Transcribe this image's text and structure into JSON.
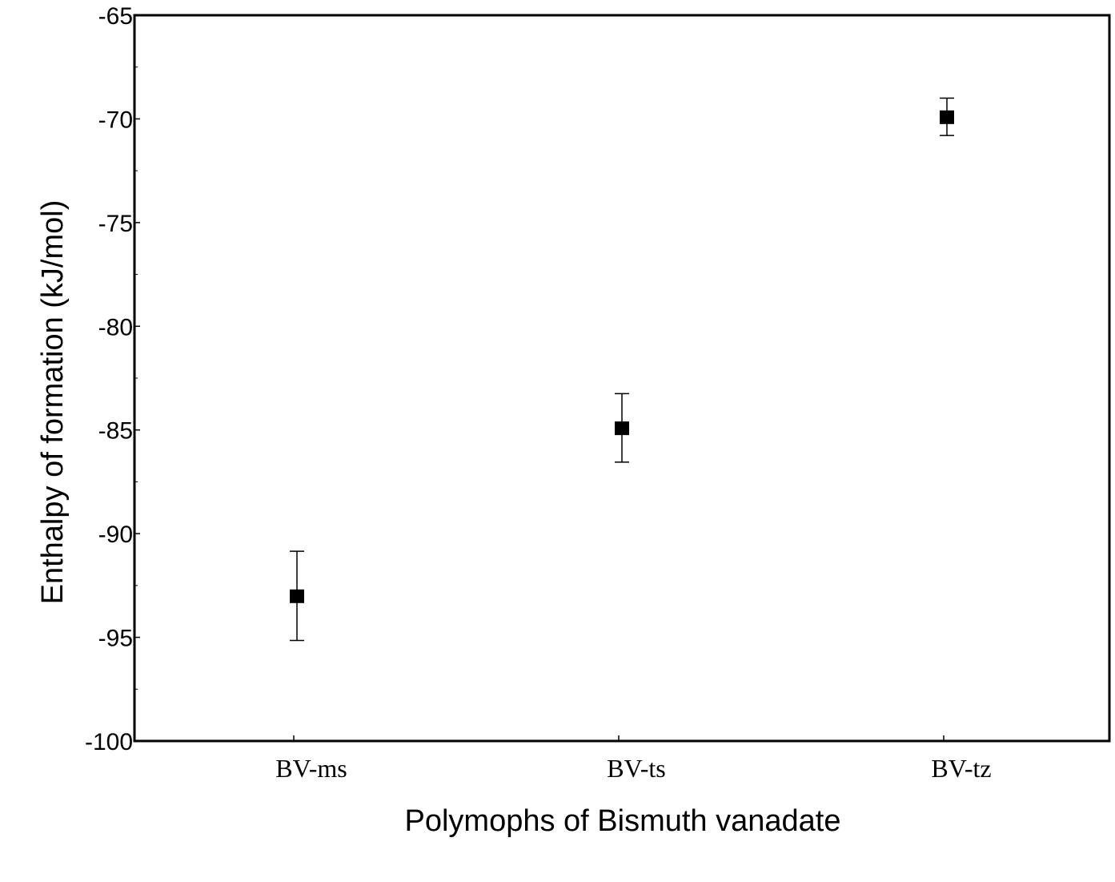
{
  "chart_data": {
    "type": "scatter",
    "title": "",
    "xlabel": "Polymophs of Bismuth vanadate",
    "ylabel": "Enthalpy of formation (kJ/mol)",
    "categories": [
      "BV-ms",
      "BV-ts",
      "BV-tz"
    ],
    "values": [
      -93.0,
      -84.9,
      -69.9
    ],
    "errors": [
      2.15,
      1.65,
      0.9
    ],
    "ylim": [
      -100,
      -65
    ],
    "yticks": [
      -65,
      -70,
      -75,
      -80,
      -85,
      -90,
      -95,
      -100
    ],
    "grid": false,
    "legend": null,
    "marker": "square",
    "color": "#000000"
  }
}
